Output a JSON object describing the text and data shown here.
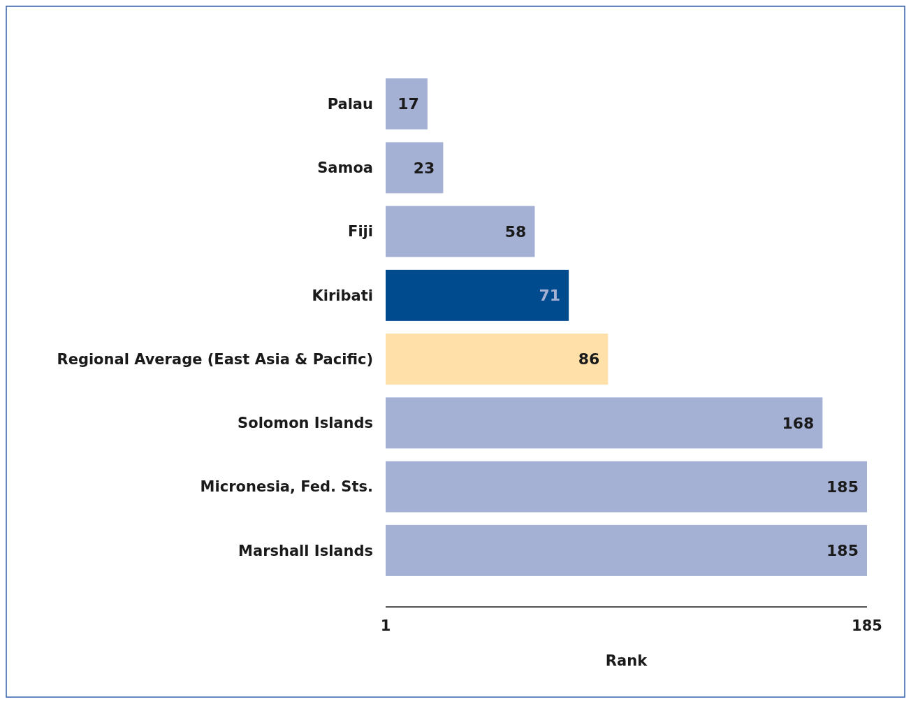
{
  "chart_data": {
    "type": "bar",
    "orientation": "horizontal",
    "xlabel": "Rank",
    "categories": [
      "Palau",
      "Samoa",
      "Fiji",
      "Kiribati",
      "Regional Average (East Asia & Pacific)",
      "Solomon Islands",
      "Micronesia, Fed. Sts.",
      "Marshall Islands"
    ],
    "values": [
      17,
      23,
      58,
      71,
      86,
      168,
      185,
      185
    ],
    "colors": [
      "#a5b1d4",
      "#a5b1d4",
      "#a5b1d4",
      "#004b8d",
      "#fee0a8",
      "#a5b1d4",
      "#a5b1d4",
      "#a5b1d4"
    ],
    "xlim": [
      1,
      185
    ],
    "xticks": [
      1,
      185
    ],
    "data_labels": true,
    "grid": false
  }
}
